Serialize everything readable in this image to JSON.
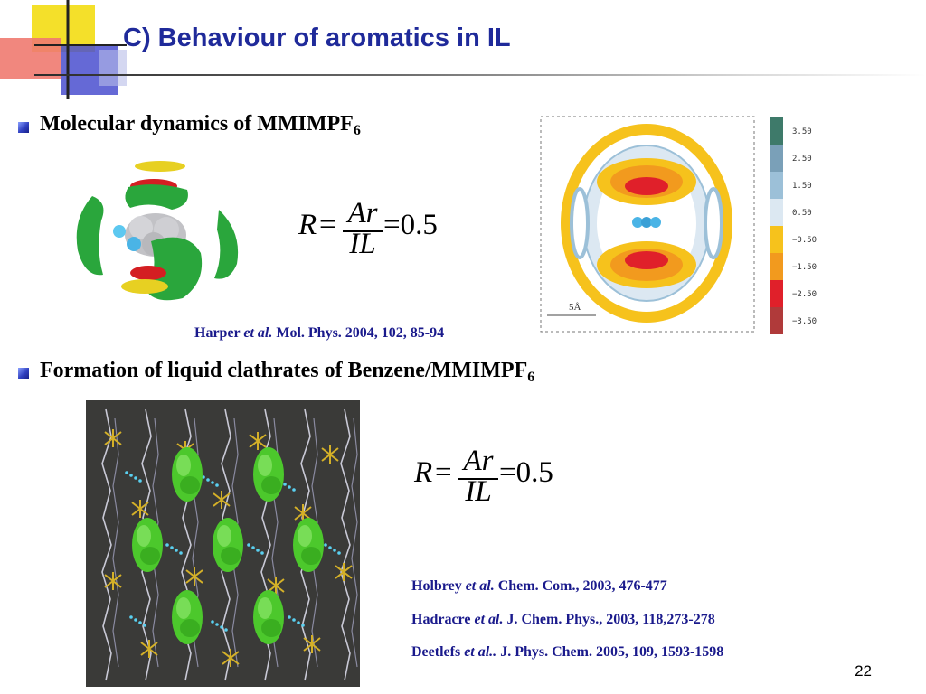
{
  "slide": {
    "title": "C) Behaviour of aromatics in IL",
    "page_number": "22"
  },
  "section1": {
    "bullet_text": "Molecular dynamics of MMIMPF",
    "bullet_sub": "6",
    "equation": {
      "lhs": "R",
      "eq1": "=",
      "numerator": "Ar",
      "denominator": "IL",
      "rhs": "=0.5"
    },
    "reference": {
      "author": "Harper",
      "etal": "et al.",
      "citation": "Mol. Phys. 2004, 102, 85-94"
    },
    "contour_colorbar": [
      "3.50",
      "2.50",
      "1.50",
      "0.50",
      "−0.50",
      "−1.50",
      "−2.50",
      "−3.50"
    ],
    "colorbar_colors": [
      "#3e7a6a",
      "#7aa0b8",
      "#9cc0d8",
      "#dce8f2",
      "#f6c21c",
      "#f29a1e",
      "#e0202a",
      "#b03a3a"
    ],
    "scale_label": "5Å"
  },
  "section2": {
    "bullet_text": "Formation of liquid clathrates of Benzene/MMIMPF",
    "bullet_sub": "6",
    "equation": {
      "lhs": "R",
      "eq1": "=",
      "numerator": "Ar",
      "denominator": "IL",
      "rhs": "=0.5"
    },
    "references": [
      {
        "author": "Holbrey",
        "etal": "et al.",
        "citation": "Chem. Com., 2003, 476-477"
      },
      {
        "author": "Hadracre",
        "etal": "et al.",
        "citation": "J. Chem. Phys., 2003, 118,273-278"
      },
      {
        "author": "Deetlefs",
        "etal": "et al..",
        "citation": "J. Phys. Chem. 2005, 109, 1593-1598"
      }
    ]
  }
}
